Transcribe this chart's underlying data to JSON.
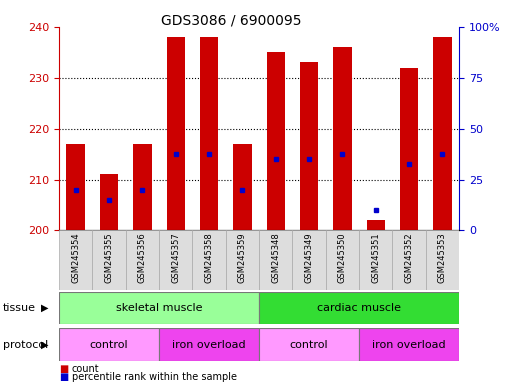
{
  "title": "GDS3086 / 6900095",
  "samples": [
    "GSM245354",
    "GSM245355",
    "GSM245356",
    "GSM245357",
    "GSM245358",
    "GSM245359",
    "GSM245348",
    "GSM245349",
    "GSM245350",
    "GSM245351",
    "GSM245352",
    "GSM245353"
  ],
  "bar_bottoms": [
    200,
    200,
    200,
    200,
    200,
    200,
    200,
    200,
    200,
    200,
    200,
    200
  ],
  "bar_tops": [
    217,
    211,
    217,
    238,
    238,
    217,
    235,
    233,
    236,
    202,
    232,
    238
  ],
  "blue_markers": [
    208,
    206,
    208,
    215,
    215,
    208,
    214,
    214,
    215,
    204,
    213,
    215
  ],
  "ylim_left": [
    200,
    240
  ],
  "ylim_right": [
    0,
    100
  ],
  "yticks_left": [
    200,
    210,
    220,
    230,
    240
  ],
  "yticks_right": [
    0,
    25,
    50,
    75,
    100
  ],
  "ytick_labels_right": [
    "0",
    "25",
    "50",
    "75",
    "100%"
  ],
  "bar_color": "#cc0000",
  "blue_color": "#0000cc",
  "bar_width": 0.55,
  "tissue_groups": [
    {
      "label": "skeletal muscle",
      "start": 0,
      "end": 6,
      "color": "#99ff99"
    },
    {
      "label": "cardiac muscle",
      "start": 6,
      "end": 12,
      "color": "#33dd33"
    }
  ],
  "protocol_groups": [
    {
      "label": "control",
      "start": 0,
      "end": 3,
      "color": "#ff99ff"
    },
    {
      "label": "iron overload",
      "start": 3,
      "end": 6,
      "color": "#ee44ee"
    },
    {
      "label": "control",
      "start": 6,
      "end": 9,
      "color": "#ff99ff"
    },
    {
      "label": "iron overload",
      "start": 9,
      "end": 12,
      "color": "#ee44ee"
    }
  ],
  "legend_count_color": "#cc0000",
  "legend_pct_color": "#0000cc",
  "bg_color": "#ffffff",
  "axis_label_color_left": "#cc0000",
  "axis_label_color_right": "#0000cc",
  "label_bg_color": "#dddddd",
  "label_edge_color": "#aaaaaa"
}
